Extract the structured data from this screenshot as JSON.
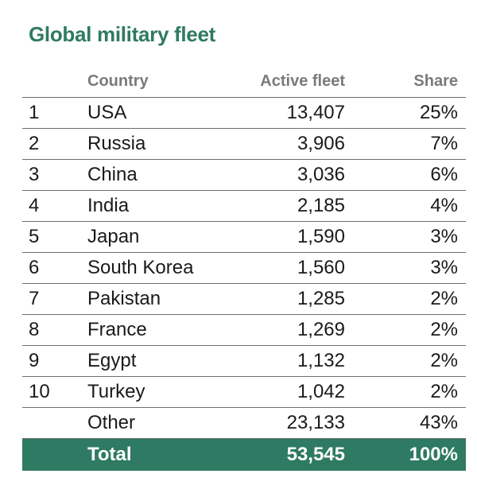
{
  "title": "Global military fleet",
  "chart_data": {
    "type": "table",
    "title": "Global military fleet",
    "columns": [
      "Country",
      "Active fleet",
      "Share"
    ],
    "rows": [
      {
        "rank": "1",
        "country": "USA",
        "fleet": "13,407",
        "share": "25%"
      },
      {
        "rank": "2",
        "country": "Russia",
        "fleet": "3,906",
        "share": "7%"
      },
      {
        "rank": "3",
        "country": "China",
        "fleet": "3,036",
        "share": "6%"
      },
      {
        "rank": "4",
        "country": "India",
        "fleet": "2,185",
        "share": "4%"
      },
      {
        "rank": "5",
        "country": "Japan",
        "fleet": "1,590",
        "share": "3%"
      },
      {
        "rank": "6",
        "country": "South Korea",
        "fleet": "1,560",
        "share": "3%"
      },
      {
        "rank": "7",
        "country": "Pakistan",
        "fleet": "1,285",
        "share": "2%"
      },
      {
        "rank": "8",
        "country": "France",
        "fleet": "1,269",
        "share": "2%"
      },
      {
        "rank": "9",
        "country": "Egypt",
        "fleet": "1,132",
        "share": "2%"
      },
      {
        "rank": "10",
        "country": "Turkey",
        "fleet": "1,042",
        "share": "2%"
      },
      {
        "rank": "",
        "country": "Other",
        "fleet": "23,133",
        "share": "43%"
      }
    ],
    "total": {
      "label": "Total",
      "fleet": "53,545",
      "share": "100%"
    }
  },
  "colors": {
    "accent": "#2e7a62",
    "header_text": "#7a7a7a"
  }
}
